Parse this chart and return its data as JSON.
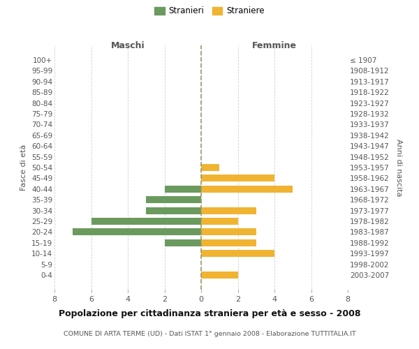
{
  "age_groups": [
    "100+",
    "95-99",
    "90-94",
    "85-89",
    "80-84",
    "75-79",
    "70-74",
    "65-69",
    "60-64",
    "55-59",
    "50-54",
    "45-49",
    "40-44",
    "35-39",
    "30-34",
    "25-29",
    "20-24",
    "15-19",
    "10-14",
    "5-9",
    "0-4"
  ],
  "birth_years": [
    "≤ 1907",
    "1908-1912",
    "1913-1917",
    "1918-1922",
    "1923-1927",
    "1928-1932",
    "1933-1937",
    "1938-1942",
    "1943-1947",
    "1948-1952",
    "1953-1957",
    "1958-1962",
    "1963-1967",
    "1968-1972",
    "1973-1977",
    "1978-1982",
    "1983-1987",
    "1988-1992",
    "1993-1997",
    "1998-2002",
    "2003-2007"
  ],
  "maschi": [
    0,
    0,
    0,
    0,
    0,
    0,
    0,
    0,
    0,
    0,
    0,
    0,
    2,
    3,
    3,
    6,
    7,
    2,
    0,
    0,
    0
  ],
  "femmine": [
    0,
    0,
    0,
    0,
    0,
    0,
    0,
    0,
    0,
    0,
    1,
    4,
    5,
    0,
    3,
    2,
    3,
    3,
    4,
    0,
    2
  ],
  "color_maschi": "#6b9a5e",
  "color_femmine": "#f0b432",
  "title": "Popolazione per cittadinanza straniera per età e sesso - 2008",
  "subtitle": "COMUNE DI ARTA TERME (UD) - Dati ISTAT 1° gennaio 2008 - Elaborazione TUTTITALIA.IT",
  "ylabel_left": "Fasce di età",
  "ylabel_right": "Anni di nascita",
  "xlabel_left": "Maschi",
  "xlabel_right": "Femmine",
  "legend_stranieri": "Stranieri",
  "legend_straniere": "Straniere",
  "xlim": 8,
  "background_color": "#ffffff",
  "grid_color": "#d0d0d0"
}
